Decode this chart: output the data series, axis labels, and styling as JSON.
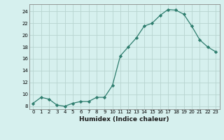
{
  "x": [
    0,
    1,
    2,
    3,
    4,
    5,
    6,
    7,
    8,
    9,
    10,
    11,
    12,
    13,
    14,
    15,
    16,
    17,
    18,
    19,
    20,
    21,
    22,
    23
  ],
  "y": [
    8.5,
    9.5,
    9.2,
    8.2,
    8.0,
    8.5,
    8.8,
    8.8,
    9.5,
    9.5,
    11.5,
    16.5,
    18.0,
    19.5,
    21.5,
    22.0,
    23.3,
    24.3,
    24.2,
    23.5,
    21.5,
    19.2,
    18.0,
    17.2
  ],
  "line_color": "#2e7d6e",
  "marker": "D",
  "marker_size": 2.2,
  "bg_color": "#d6f0ee",
  "grid_color": "#b8d4d0",
  "xlabel": "Humidex (Indice chaleur)",
  "ylabel_ticks": [
    8,
    10,
    12,
    14,
    16,
    18,
    20,
    22,
    24
  ],
  "ylim": [
    7.5,
    25.2
  ],
  "xlim": [
    -0.5,
    23.5
  ],
  "tick_fontsize": 5.0,
  "xlabel_fontsize": 6.5
}
